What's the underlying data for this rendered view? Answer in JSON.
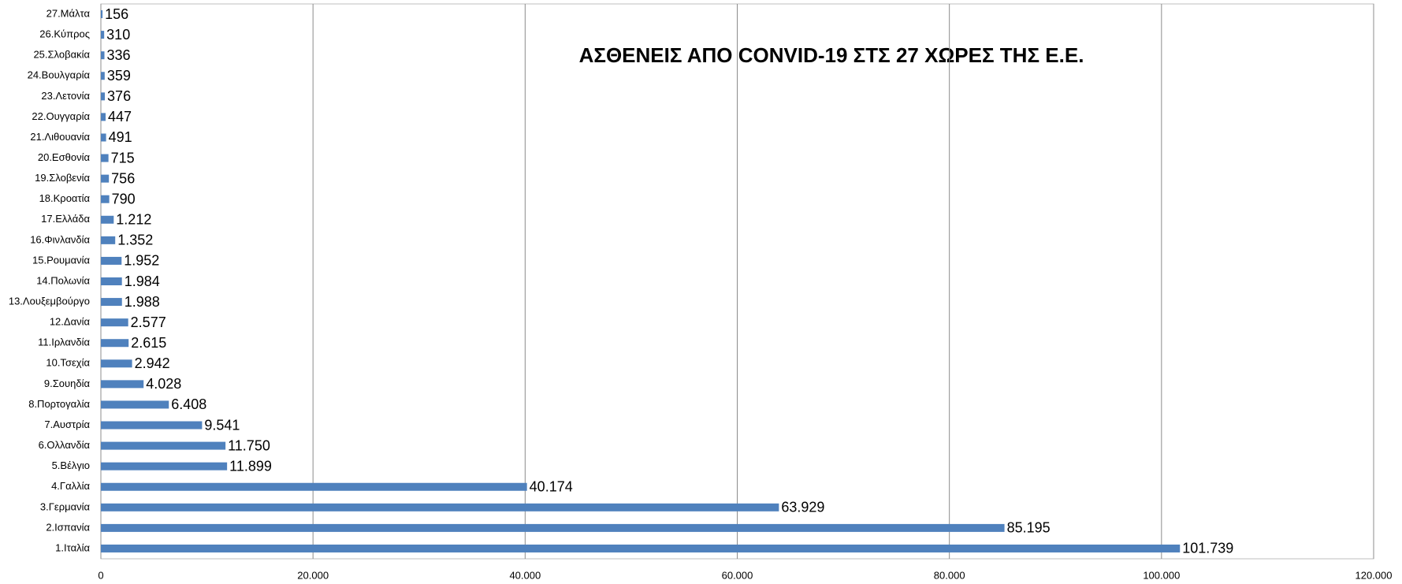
{
  "chart_data": {
    "type": "barh",
    "title": "ΑΣΘΕΝΕΙΣ ΑΠΟ CONVID-19 ΣΤΣ 27 ΧΩΡΕΣ ΤΗΣ Ε.Ε.",
    "categories": [
      "1.Ιταλία",
      "2.Ισπανία",
      "3.Γερμανία",
      "4.Γαλλία",
      "5.Βέλγιο",
      "6.Ολλανδία",
      "7.Αυστρία",
      "8.Πορτογαλία",
      "9.Σουηδία",
      "10.Τσεχία",
      "11.Ιρλανδία",
      "12.Δανία",
      "13.Λουξεμβούργο",
      "14.Πολωνία",
      "15.Ρουμανία",
      "16.Φινλανδία",
      "17.Ελλάδα",
      "18.Κροατία",
      "19.Σλοβενία",
      "20.Εσθονία",
      "21.Λιθουανία",
      "22.Ουγγαρία",
      "23.Λετονία",
      "24.Βουλγαρία",
      "25.Σλοβακία",
      "26.Κύπρος",
      "27.Μάλτα"
    ],
    "values": [
      101739,
      85195,
      63929,
      40174,
      11899,
      11750,
      9541,
      6408,
      4028,
      2942,
      2615,
      2577,
      1988,
      1984,
      1952,
      1352,
      1212,
      790,
      756,
      715,
      491,
      447,
      376,
      359,
      336,
      310,
      156
    ],
    "value_labels": [
      "101.739",
      "85.195",
      "63.929",
      "40.174",
      "11.899",
      "11.750",
      "9.541",
      "6.408",
      "4.028",
      "2.942",
      "2.615",
      "2.577",
      "1.988",
      "1.984",
      "1.952",
      "1.352",
      "1.212",
      "790",
      "756",
      "715",
      "491",
      "447",
      "376",
      "359",
      "336",
      "310",
      "156"
    ],
    "color": "#4f81bd",
    "xlim": [
      0,
      120000
    ],
    "xticks": [
      0,
      {
        "value": 20000,
        "label": "20.000"
      },
      {
        "value": 40000,
        "label": "40.000"
      },
      {
        "value": 60000,
        "label": "60.000"
      },
      {
        "value": 80000,
        "label": "80.000"
      },
      {
        "value": 100000,
        "label": "100.000"
      },
      {
        "value": 120000,
        "label": "120.000"
      }
    ],
    "grid": true
  }
}
